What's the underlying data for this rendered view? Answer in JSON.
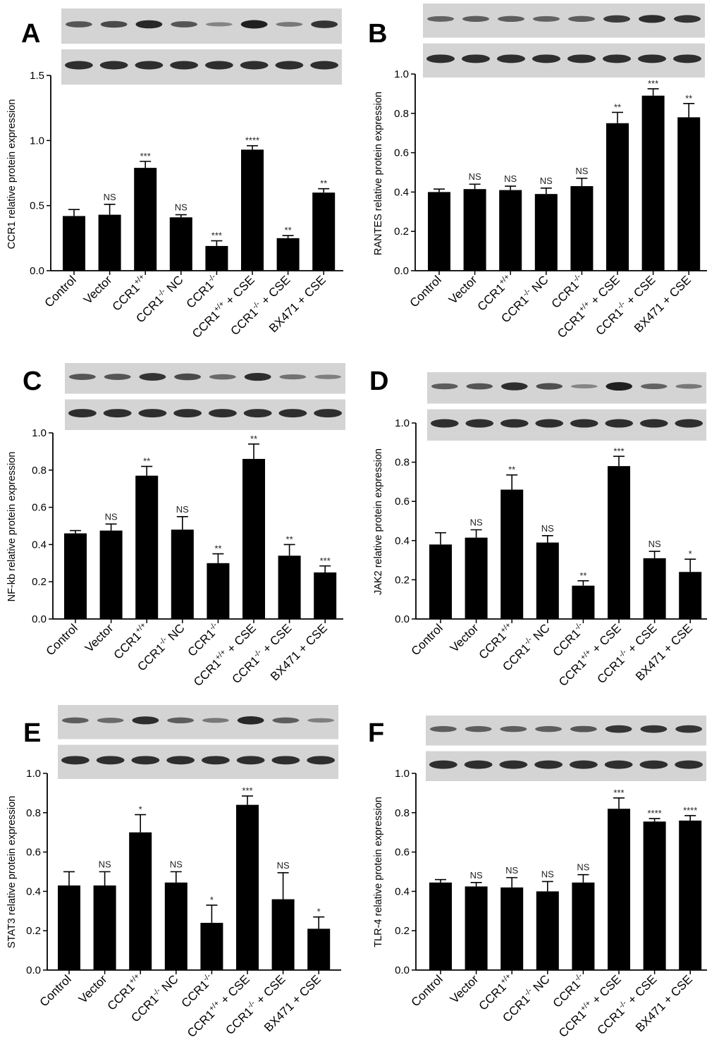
{
  "figure": {
    "categories": [
      {
        "base": "Control",
        "sup": "",
        "rest": ""
      },
      {
        "base": "Vector",
        "sup": "",
        "rest": ""
      },
      {
        "base": "CCR1",
        "sup": "+/+",
        "rest": ""
      },
      {
        "base": "CCR1",
        "sup": "-/-",
        "rest": " NC"
      },
      {
        "base": "CCR1",
        "sup": "-/-",
        "rest": ""
      },
      {
        "base": "CCR1",
        "sup": "+/+",
        "rest": " + CSE"
      },
      {
        "base": "CCR1",
        "sup": "-/-",
        "rest": " + CSE"
      },
      {
        "base": "BX471 + CSE",
        "sup": "",
        "rest": ""
      }
    ],
    "colors": {
      "bar": "#000000",
      "axis": "#000000",
      "blot_bg": "#d4d4d4",
      "band": "#202020"
    }
  },
  "chart_data": [
    {
      "type": "bar",
      "panel": "A",
      "title": "",
      "ylabel": "CCR1 relative protein expression",
      "ylim": [
        0,
        1.5
      ],
      "yticks": [
        "0.0",
        "0.5",
        "1.0",
        "1.5"
      ],
      "values": [
        0.42,
        0.43,
        0.79,
        0.41,
        0.19,
        0.93,
        0.25,
        0.6
      ],
      "errors": [
        0.05,
        0.08,
        0.05,
        0.02,
        0.04,
        0.03,
        0.02,
        0.03
      ],
      "significance": [
        "",
        "NS",
        "***",
        "NS",
        "***",
        "****",
        "**",
        "**"
      ],
      "blot_top": [
        0.6,
        0.7,
        0.95,
        0.6,
        0.25,
        1.0,
        0.35,
        0.85
      ]
    },
    {
      "type": "bar",
      "panel": "B",
      "title": "",
      "ylabel": "RANTES relative protein expression",
      "ylim": [
        0,
        1.0
      ],
      "yticks": [
        "0.0",
        "0.2",
        "0.4",
        "0.6",
        "0.8",
        "1.0"
      ],
      "values": [
        0.4,
        0.415,
        0.41,
        0.39,
        0.43,
        0.75,
        0.89,
        0.78
      ],
      "errors": [
        0.015,
        0.025,
        0.02,
        0.03,
        0.04,
        0.055,
        0.035,
        0.07
      ],
      "significance": [
        "",
        "NS",
        "NS",
        "NS",
        "NS",
        "**",
        "***",
        "**"
      ],
      "blot_top": [
        0.5,
        0.55,
        0.55,
        0.5,
        0.55,
        0.8,
        0.9,
        0.85
      ]
    },
    {
      "type": "bar",
      "panel": "C",
      "title": "",
      "ylabel": "NF-kb relative protein expression",
      "ylim": [
        0,
        1.0
      ],
      "yticks": [
        "0.0",
        "0.2",
        "0.4",
        "0.6",
        "0.8",
        "1.0"
      ],
      "values": [
        0.46,
        0.475,
        0.77,
        0.48,
        0.3,
        0.86,
        0.34,
        0.25
      ],
      "errors": [
        0.015,
        0.035,
        0.05,
        0.07,
        0.05,
        0.08,
        0.06,
        0.035
      ],
      "significance": [
        "",
        "NS",
        "**",
        "NS",
        "**",
        "**",
        "**",
        "***"
      ],
      "blot_top": [
        0.6,
        0.6,
        0.85,
        0.7,
        0.45,
        0.9,
        0.4,
        0.3
      ]
    },
    {
      "type": "bar",
      "panel": "D",
      "title": "",
      "ylabel": "JAK2 relative protein expression",
      "ylim": [
        0,
        1.0
      ],
      "yticks": [
        "0.0",
        "0.2",
        "0.4",
        "0.6",
        "0.8",
        "1.0"
      ],
      "values": [
        0.38,
        0.415,
        0.66,
        0.39,
        0.17,
        0.78,
        0.31,
        0.24
      ],
      "errors": [
        0.06,
        0.04,
        0.075,
        0.035,
        0.025,
        0.05,
        0.035,
        0.065
      ],
      "significance": [
        "",
        "NS",
        "**",
        "NS",
        "**",
        "***",
        "NS",
        "*"
      ],
      "blot_top": [
        0.55,
        0.6,
        0.9,
        0.65,
        0.25,
        1.0,
        0.5,
        0.35
      ]
    },
    {
      "type": "bar",
      "panel": "E",
      "title": "",
      "ylabel": "STAT3 relative protein expression",
      "ylim": [
        0,
        1.0
      ],
      "yticks": [
        "0.0",
        "0.2",
        "0.4",
        "0.6",
        "0.8",
        "1.0"
      ],
      "values": [
        0.43,
        0.43,
        0.7,
        0.445,
        0.24,
        0.84,
        0.36,
        0.21
      ],
      "errors": [
        0.07,
        0.07,
        0.09,
        0.055,
        0.09,
        0.045,
        0.135,
        0.06
      ],
      "significance": [
        "",
        "NS",
        "*",
        "NS",
        "*",
        "***",
        "NS",
        "*"
      ],
      "blot_top": [
        0.55,
        0.45,
        0.9,
        0.55,
        0.35,
        0.95,
        0.55,
        0.3
      ]
    },
    {
      "type": "bar",
      "panel": "F",
      "title": "",
      "ylabel": "TLR-4 relative protein expression",
      "ylim": [
        0,
        1.0
      ],
      "yticks": [
        "0.0",
        "0.2",
        "0.4",
        "0.6",
        "0.8",
        "1.0"
      ],
      "values": [
        0.445,
        0.425,
        0.42,
        0.4,
        0.445,
        0.82,
        0.755,
        0.76
      ],
      "errors": [
        0.015,
        0.02,
        0.05,
        0.05,
        0.04,
        0.055,
        0.015,
        0.025
      ],
      "significance": [
        "",
        "NS",
        "NS",
        "NS",
        "NS",
        "***",
        "****",
        "****"
      ],
      "blot_top": [
        0.55,
        0.55,
        0.55,
        0.55,
        0.6,
        0.85,
        0.85,
        0.85
      ]
    }
  ]
}
